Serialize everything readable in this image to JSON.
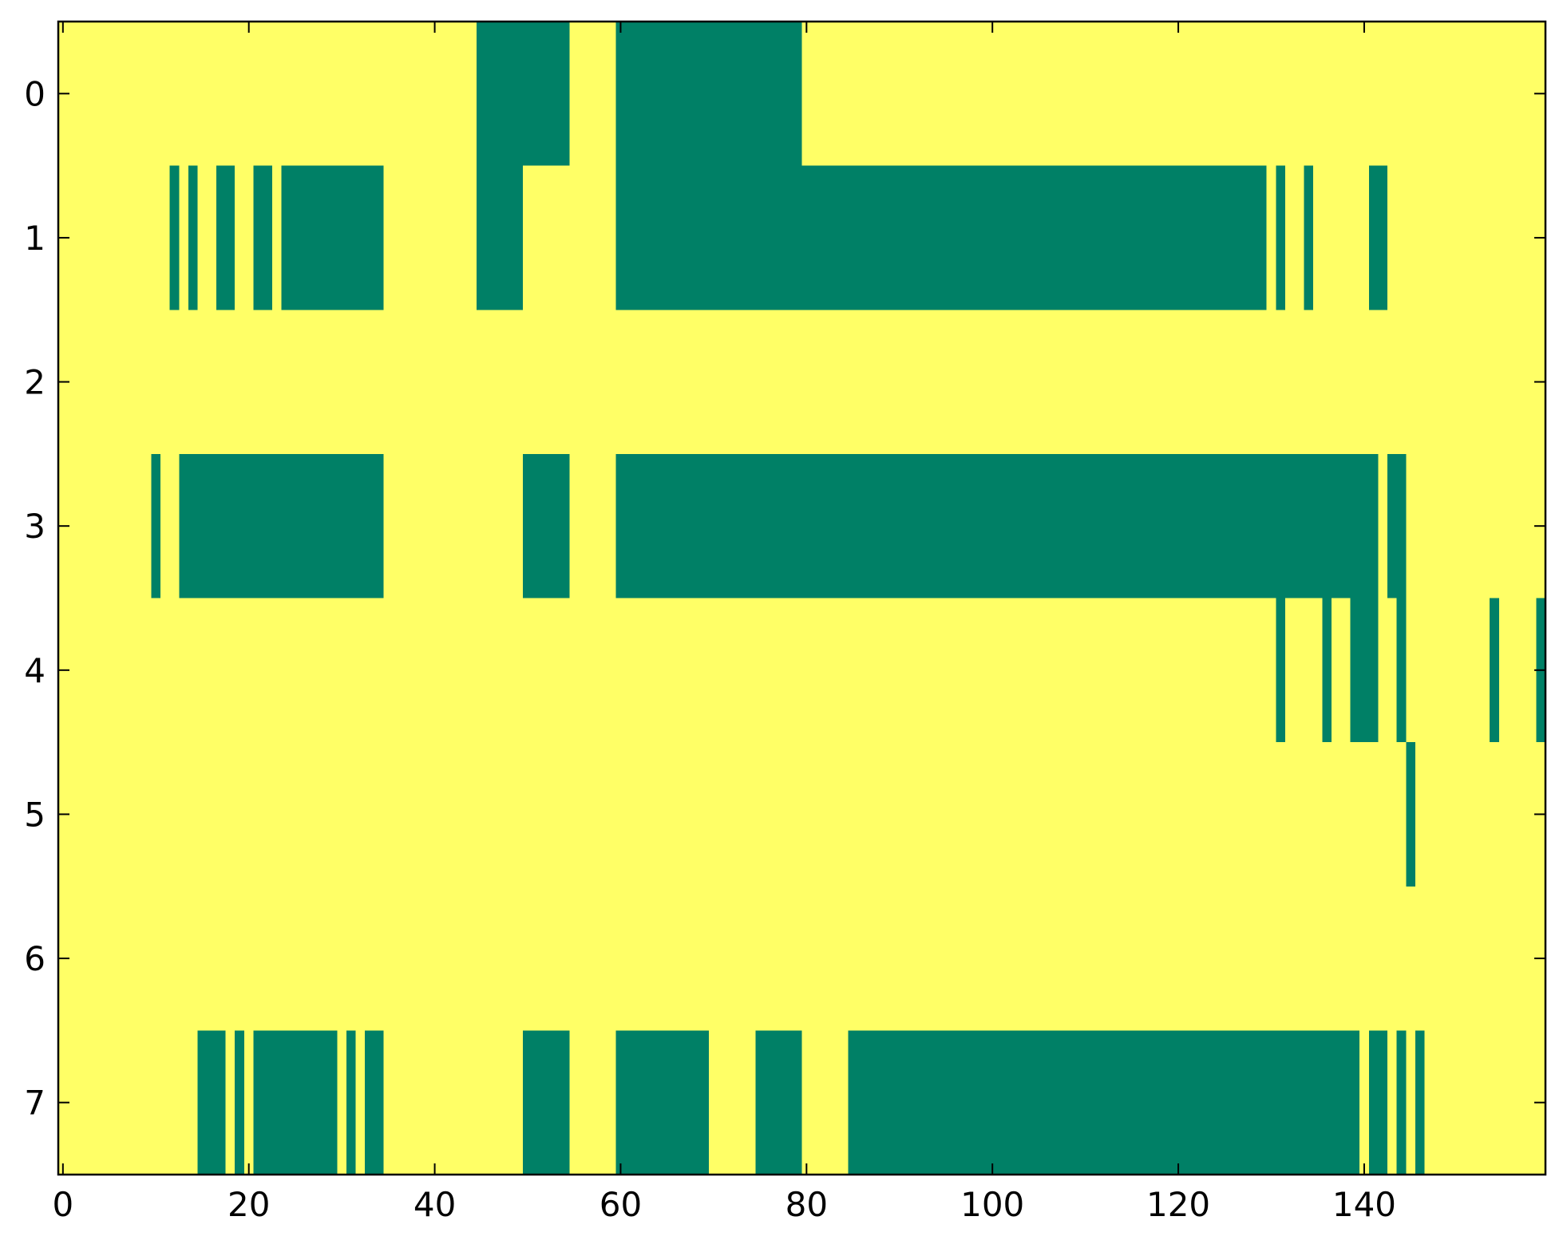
{
  "chart_data": {
    "type": "heatmap",
    "title": "",
    "xlabel": "",
    "ylabel": "",
    "xlim": [
      -0.5,
      159.5
    ],
    "ylim": [
      7.5,
      -0.5
    ],
    "x_ticks": [
      0,
      20,
      40,
      60,
      80,
      100,
      120,
      140
    ],
    "y_ticks": [
      0,
      1,
      2,
      3,
      4,
      5,
      6,
      7
    ],
    "x_tick_labels": [
      "0",
      "20",
      "40",
      "60",
      "80",
      "100",
      "120",
      "140"
    ],
    "y_tick_labels": [
      "0",
      "1",
      "2",
      "3",
      "4",
      "5",
      "6",
      "7"
    ],
    "colors": {
      "value_0": "#ffff66",
      "value_1": "#008066"
    },
    "grid": false,
    "rows": 8,
    "columns": 160,
    "segments_value_1": [
      {
        "row": 0,
        "from": 45,
        "to": 54
      },
      {
        "row": 0,
        "from": 60,
        "to": 79
      },
      {
        "row": 1,
        "from": 12,
        "to": 12
      },
      {
        "row": 1,
        "from": 14,
        "to": 14
      },
      {
        "row": 1,
        "from": 17,
        "to": 18
      },
      {
        "row": 1,
        "from": 21,
        "to": 22
      },
      {
        "row": 1,
        "from": 24,
        "to": 34
      },
      {
        "row": 1,
        "from": 45,
        "to": 49
      },
      {
        "row": 1,
        "from": 60,
        "to": 129
      },
      {
        "row": 1,
        "from": 131,
        "to": 131
      },
      {
        "row": 1,
        "from": 134,
        "to": 134
      },
      {
        "row": 1,
        "from": 141,
        "to": 142
      },
      {
        "row": 3,
        "from": 10,
        "to": 10
      },
      {
        "row": 3,
        "from": 13,
        "to": 34
      },
      {
        "row": 3,
        "from": 50,
        "to": 54
      },
      {
        "row": 3,
        "from": 60,
        "to": 141
      },
      {
        "row": 3,
        "from": 143,
        "to": 144
      },
      {
        "row": 4,
        "from": 131,
        "to": 131
      },
      {
        "row": 4,
        "from": 136,
        "to": 136
      },
      {
        "row": 4,
        "from": 139,
        "to": 141
      },
      {
        "row": 4,
        "from": 144,
        "to": 144
      },
      {
        "row": 4,
        "from": 154,
        "to": 154
      },
      {
        "row": 4,
        "from": 159,
        "to": 159
      },
      {
        "row": 5,
        "from": 145,
        "to": 145
      },
      {
        "row": 7,
        "from": 15,
        "to": 17
      },
      {
        "row": 7,
        "from": 19,
        "to": 19
      },
      {
        "row": 7,
        "from": 21,
        "to": 29
      },
      {
        "row": 7,
        "from": 31,
        "to": 31
      },
      {
        "row": 7,
        "from": 33,
        "to": 34
      },
      {
        "row": 7,
        "from": 50,
        "to": 54
      },
      {
        "row": 7,
        "from": 60,
        "to": 69
      },
      {
        "row": 7,
        "from": 75,
        "to": 79
      },
      {
        "row": 7,
        "from": 85,
        "to": 139
      },
      {
        "row": 7,
        "from": 141,
        "to": 142
      },
      {
        "row": 7,
        "from": 144,
        "to": 144
      },
      {
        "row": 7,
        "from": 146,
        "to": 146
      }
    ]
  }
}
